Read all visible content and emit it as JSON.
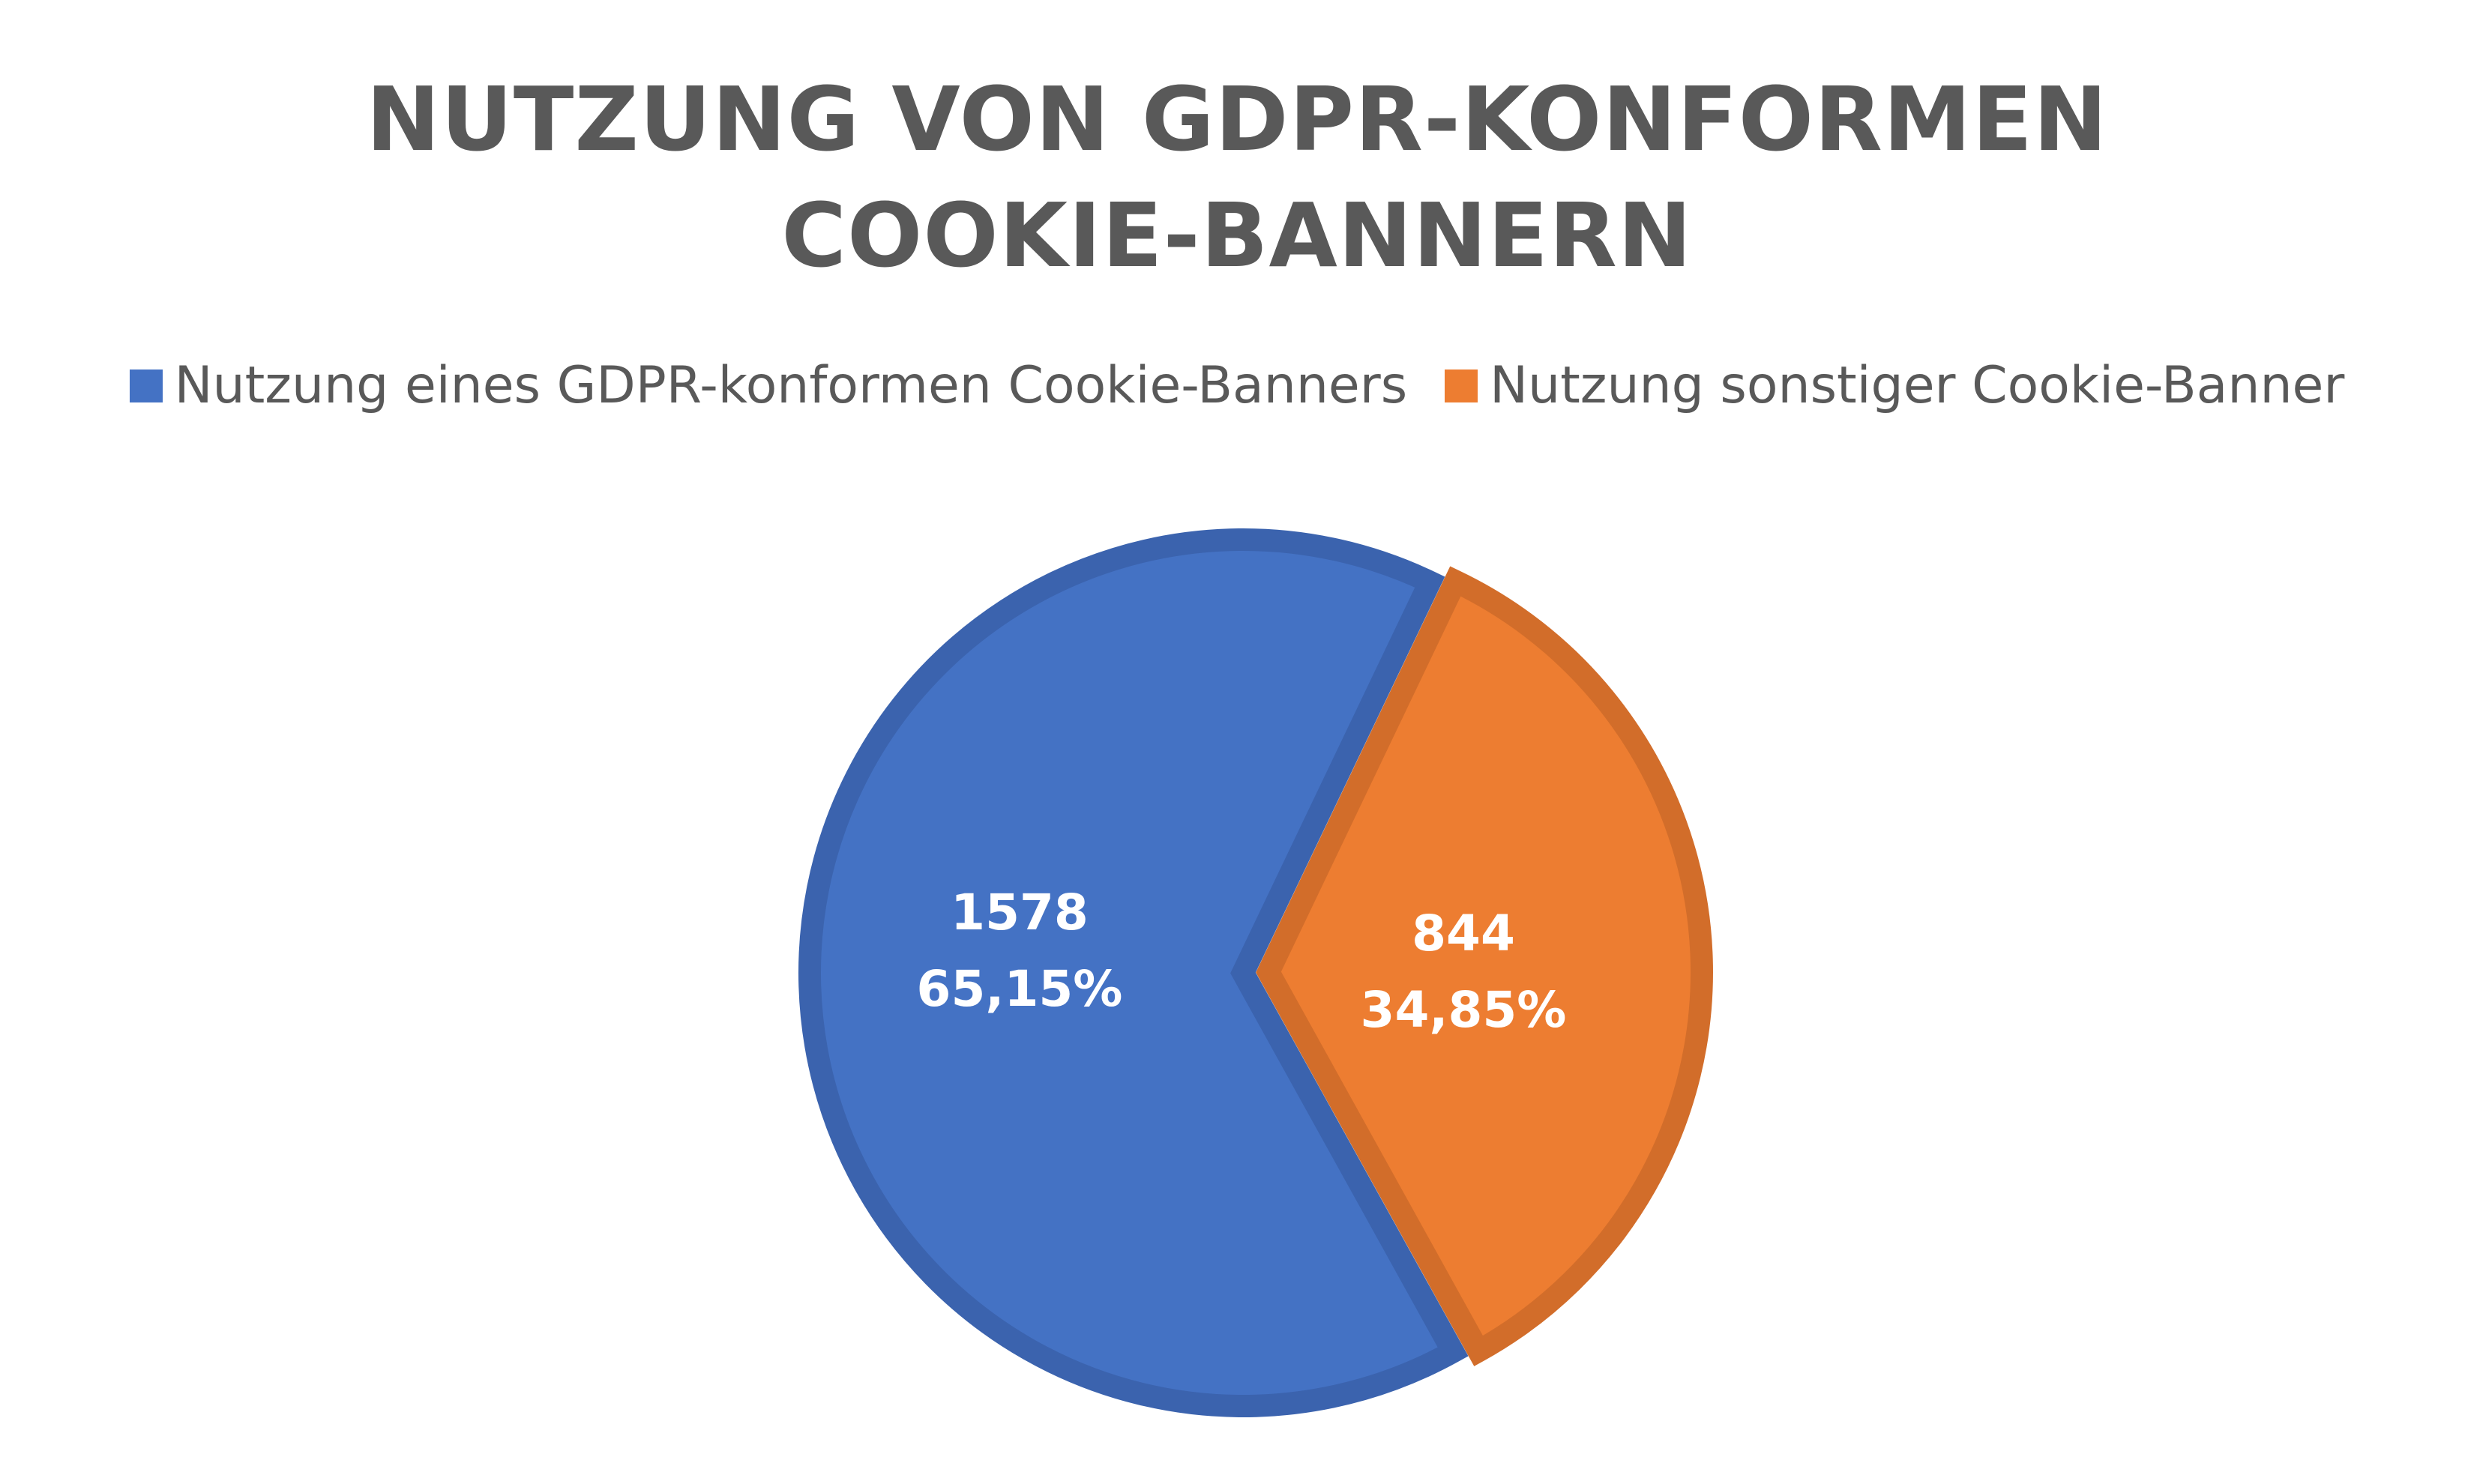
{
  "chart_data": {
    "type": "pie",
    "title_lines": [
      "NUTZUNG VON GDPR-KONFORMEN",
      "COOKIE-BANNERN"
    ],
    "legend_position": "top",
    "categories": [
      "Nutzung eines GDPR-konformen Cookie-Banners",
      "Nutzung sonstiger Cookie-Banner"
    ],
    "values": [
      1578,
      844
    ],
    "percent_labels": [
      "65,15%",
      "34,85%"
    ],
    "value_labels": [
      "1578",
      "844"
    ],
    "colors": [
      "#4472C4",
      "#ED7D31"
    ],
    "border_colors": [
      "#3B63AE",
      "#D26D2A"
    ]
  }
}
